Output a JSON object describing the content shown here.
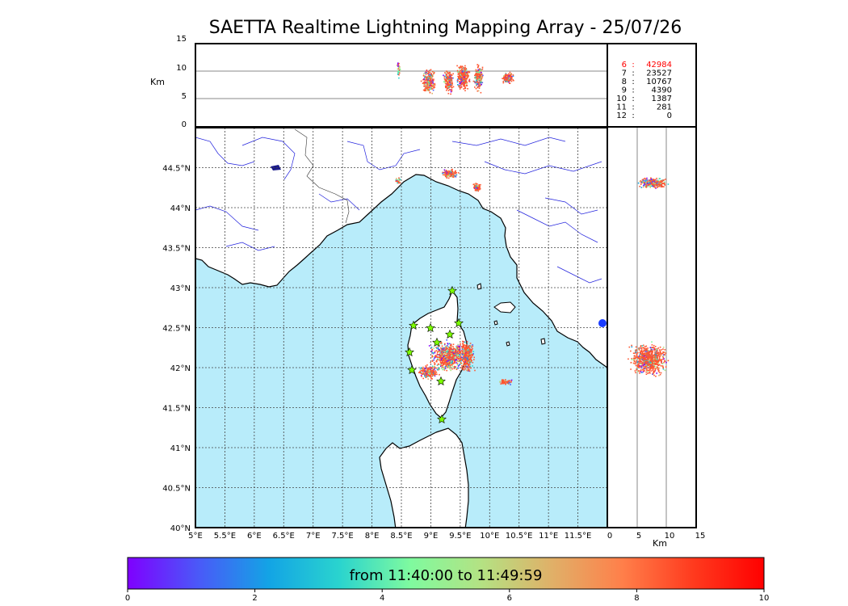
{
  "title": "SAETTA Realtime Lightning Mapping Array - 25/07/26",
  "altitude_panel": {
    "ylabel": "Km",
    "yticks": [
      "0",
      "5",
      "10",
      "15"
    ]
  },
  "station_counts": [
    {
      "stations": "6",
      "count": "42984",
      "color": "#ff0000"
    },
    {
      "stations": "7",
      "count": "23527",
      "color": "#000000"
    },
    {
      "stations": "8",
      "count": "10767",
      "color": "#000000"
    },
    {
      "stations": "9",
      "count": "4390",
      "color": "#000000"
    },
    {
      "stations": "10",
      "count": "1387",
      "color": "#000000"
    },
    {
      "stations": "11",
      "count": "281",
      "color": "#000000"
    },
    {
      "stations": "12",
      "count": "0",
      "color": "#000000"
    }
  ],
  "map": {
    "lon_ticks": [
      "5°E",
      "5.5°E",
      "6°E",
      "6.5°E",
      "7°E",
      "7.5°E",
      "8°E",
      "8.5°E",
      "9°E",
      "9.5°E",
      "10°E",
      "10.5°E",
      "11°E",
      "11.5°E"
    ],
    "lat_ticks": [
      "44.5°N",
      "44°N",
      "43.5°N",
      "43°N",
      "42.5°N",
      "42°N",
      "41.5°N",
      "41°N",
      "40.5°N",
      "40°N"
    ],
    "sea_color": "#b8ecfa",
    "land_color": "#ffffff",
    "river_color": "#2222dd"
  },
  "side_panel": {
    "xlabel": "Km",
    "xticks": [
      "0",
      "5",
      "10",
      "15"
    ]
  },
  "colorbar": {
    "label": "from 11:40:00 to 11:49:59",
    "ticks": [
      "0",
      "2",
      "4",
      "6",
      "8",
      "10"
    ],
    "colors": [
      "#7f00ff",
      "#4a59f8",
      "#13a4e5",
      "#2ad4ce",
      "#7ffa9f",
      "#b4e283",
      "#e0b068",
      "#ff7f4a",
      "#ff3a1e",
      "#ff0000"
    ]
  },
  "stations_marker": "star",
  "point_color_main": "#ff5630"
}
